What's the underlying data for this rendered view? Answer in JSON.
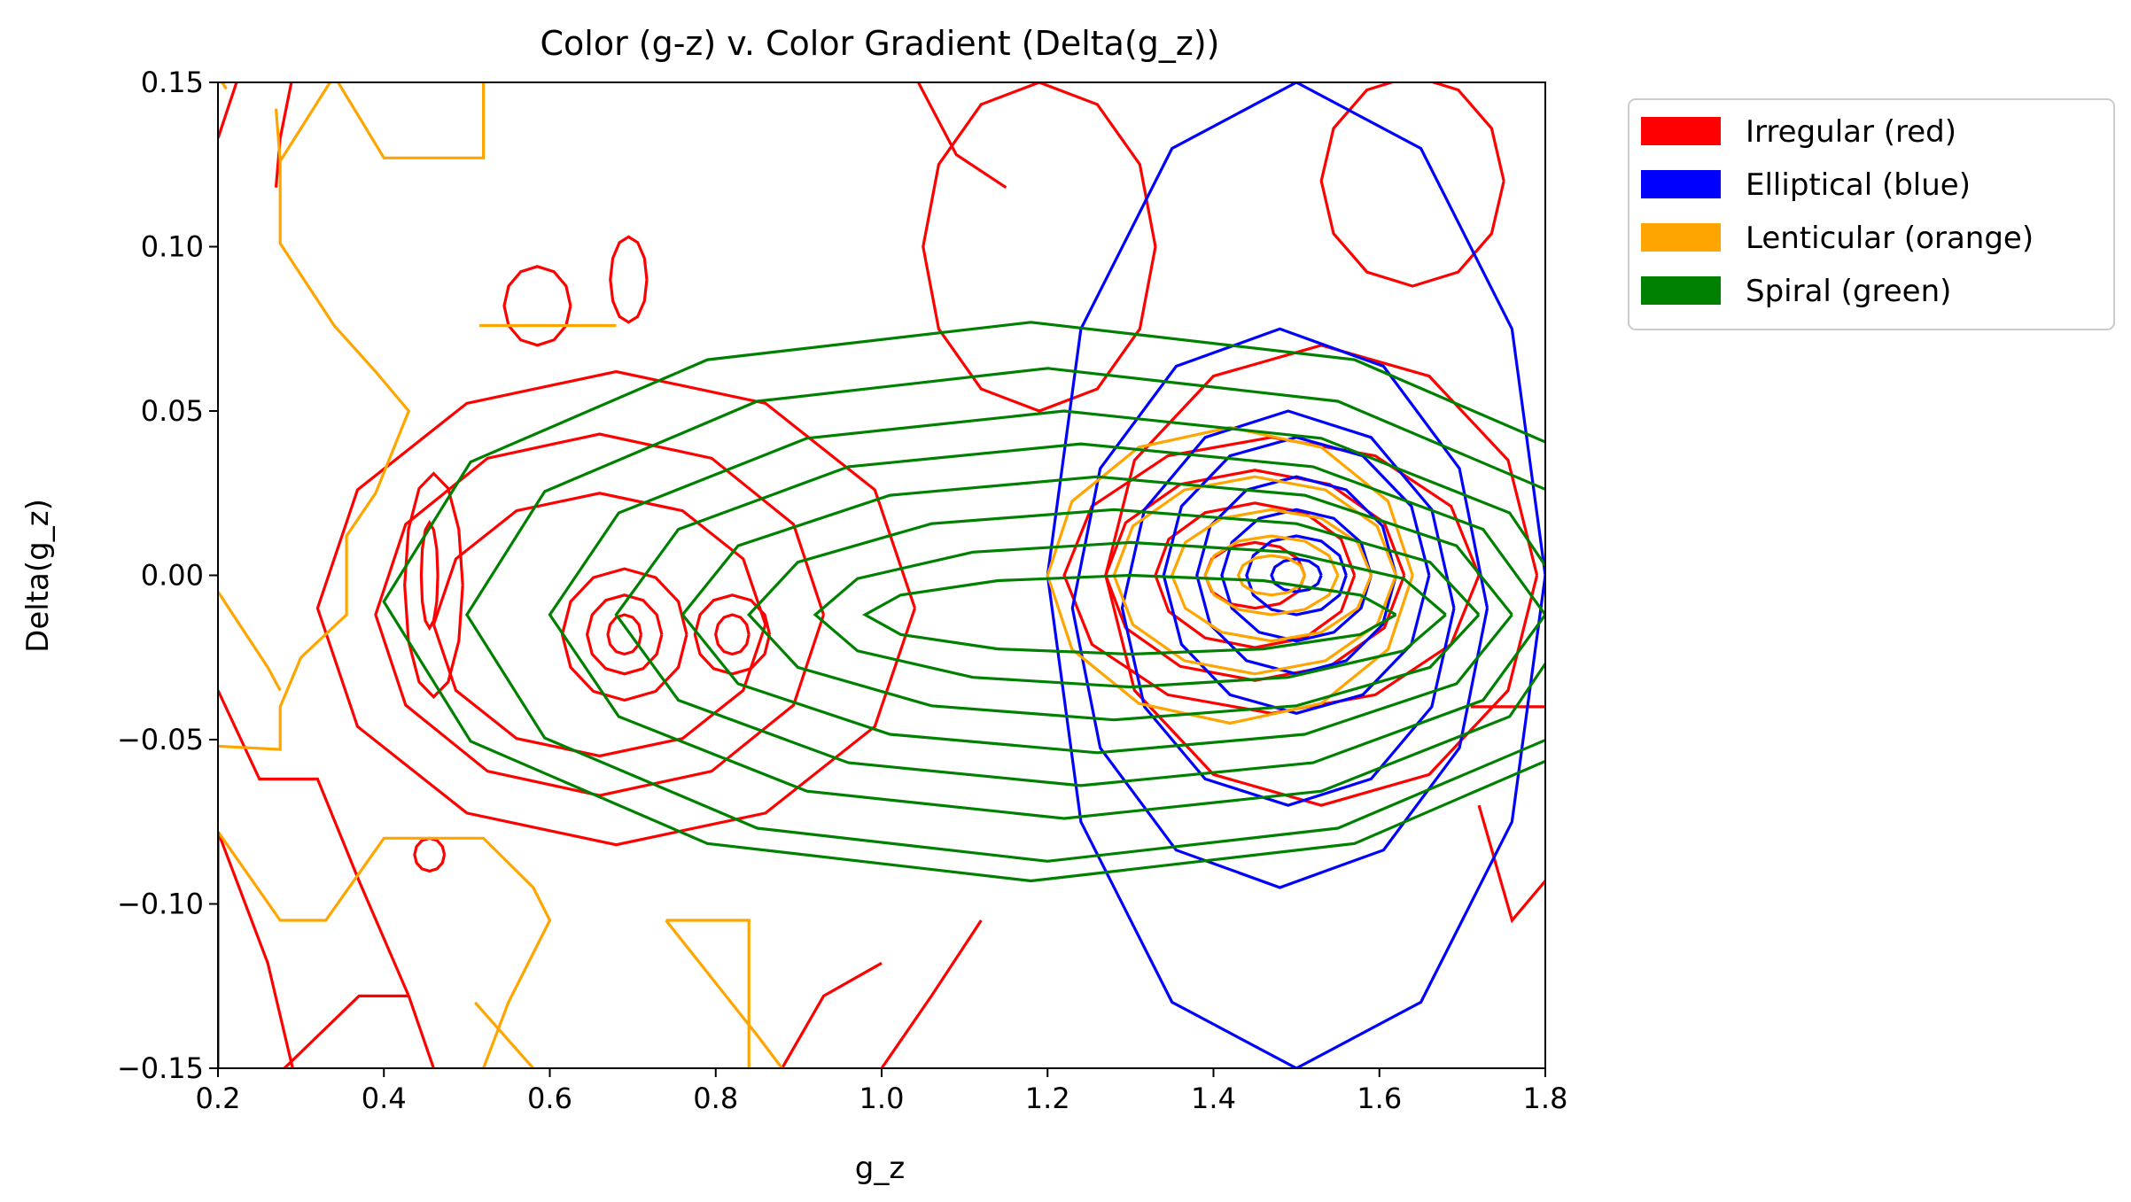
{
  "chart_data": {
    "type": "contour",
    "title": "Color (g-z) v. Color Gradient (Delta(g_z))",
    "xlabel": "g_z",
    "ylabel": "Delta(g_z)",
    "xlim": [
      0.2,
      1.8
    ],
    "ylim": [
      -0.15,
      0.15
    ],
    "xticks": [
      0.2,
      0.4,
      0.6,
      0.8,
      1.0,
      1.2,
      1.4,
      1.6,
      1.8
    ],
    "xtick_labels": [
      "0.2",
      "0.4",
      "0.6",
      "0.8",
      "1.0",
      "1.2",
      "1.4",
      "1.6",
      "1.8"
    ],
    "yticks": [
      -0.15,
      -0.1,
      -0.05,
      0.0,
      0.05,
      0.1,
      0.15
    ],
    "ytick_labels": [
      "−0.15",
      "−0.10",
      "−0.05",
      "0.00",
      "0.05",
      "0.10",
      "0.15"
    ],
    "grid": false,
    "legend_position": "outside-right-top",
    "legend": [
      {
        "label": "Irregular (red)",
        "color": "#ff0000"
      },
      {
        "label": "Elliptical (blue)",
        "color": "#0000ff"
      },
      {
        "label": "Lenticular (orange)",
        "color": "#ffa500"
      },
      {
        "label": "Spiral (green)",
        "color": "#008000"
      }
    ],
    "series": [
      {
        "name": "Irregular (red)",
        "color": "#ff0000",
        "contours": [
          {
            "kind": "ring",
            "center": [
              0.69,
              -0.018
            ],
            "rx": 0.02,
            "ry": 0.006
          },
          {
            "kind": "ring",
            "center": [
              0.69,
              -0.018
            ],
            "rx": 0.045,
            "ry": 0.012
          },
          {
            "kind": "ring",
            "center": [
              0.69,
              -0.018
            ],
            "rx": 0.075,
            "ry": 0.02
          },
          {
            "kind": "ring",
            "center": [
              0.82,
              -0.018
            ],
            "rx": 0.02,
            "ry": 0.006
          },
          {
            "kind": "ring",
            "center": [
              0.82,
              -0.018
            ],
            "rx": 0.045,
            "ry": 0.012
          },
          {
            "kind": "ring",
            "center": [
              0.455,
              0.0
            ],
            "rx": 0.01,
            "ry": 0.016
          },
          {
            "kind": "ring",
            "center": [
              0.46,
              -0.003
            ],
            "rx": 0.035,
            "ry": 0.034
          },
          {
            "kind": "ring",
            "center": [
              0.66,
              -0.015
            ],
            "rx": 0.2,
            "ry": 0.04
          },
          {
            "kind": "ring",
            "center": [
              0.66,
              -0.012
            ],
            "rx": 0.27,
            "ry": 0.055
          },
          {
            "kind": "ring",
            "center": [
              0.68,
              -0.01
            ],
            "rx": 0.36,
            "ry": 0.072
          },
          {
            "kind": "ring",
            "center": [
              1.45,
              0.0
            ],
            "rx": 0.06,
            "ry": 0.01
          },
          {
            "kind": "ring",
            "center": [
              1.45,
              0.0
            ],
            "rx": 0.12,
            "ry": 0.022
          },
          {
            "kind": "ring",
            "center": [
              1.45,
              0.0
            ],
            "rx": 0.18,
            "ry": 0.032
          },
          {
            "kind": "ring",
            "center": [
              1.47,
              0.0
            ],
            "rx": 0.25,
            "ry": 0.042
          },
          {
            "kind": "ring",
            "center": [
              1.53,
              0.0
            ],
            "rx": 0.26,
            "ry": 0.07
          },
          {
            "kind": "ring",
            "center": [
              0.585,
              0.082
            ],
            "rx": 0.04,
            "ry": 0.012
          },
          {
            "kind": "ring",
            "center": [
              0.695,
              0.09
            ],
            "rx": 0.022,
            "ry": 0.013
          },
          {
            "kind": "ring",
            "center": [
              0.455,
              -0.085
            ],
            "rx": 0.018,
            "ry": 0.005
          },
          {
            "kind": "ring",
            "center": [
              1.19,
              0.1
            ],
            "rx": 0.14,
            "ry": 0.05
          },
          {
            "kind": "ring",
            "center": [
              1.64,
              0.12
            ],
            "rx": 0.11,
            "ry": 0.032
          },
          {
            "kind": "path",
            "points": [
              [
                0.2,
                0.133
              ],
              [
                0.225,
                0.152
              ]
            ]
          },
          {
            "kind": "path",
            "points": [
              [
                0.29,
                0.152
              ],
              [
                0.275,
                0.133
              ],
              [
                0.27,
                0.118
              ]
            ]
          },
          {
            "kind": "path",
            "points": [
              [
                1.04,
                0.152
              ],
              [
                1.09,
                0.128
              ],
              [
                1.15,
                0.118
              ]
            ]
          },
          {
            "kind": "path",
            "points": [
              [
                0.2,
                -0.035
              ],
              [
                0.25,
                -0.062
              ],
              [
                0.32,
                -0.062
              ],
              [
                0.37,
                -0.093
              ],
              [
                0.43,
                -0.128
              ],
              [
                0.46,
                -0.15
              ]
            ]
          },
          {
            "kind": "path",
            "points": [
              [
                0.2,
                -0.078
              ],
              [
                0.26,
                -0.118
              ],
              [
                0.29,
                -0.15
              ]
            ]
          },
          {
            "kind": "path",
            "points": [
              [
                0.28,
                -0.15
              ],
              [
                0.37,
                -0.128
              ],
              [
                0.43,
                -0.128
              ]
            ]
          },
          {
            "kind": "path",
            "points": [
              [
                1.0,
                -0.15
              ],
              [
                1.06,
                -0.128
              ],
              [
                1.12,
                -0.105
              ]
            ]
          },
          {
            "kind": "path",
            "points": [
              [
                0.88,
                -0.15
              ],
              [
                0.93,
                -0.128
              ],
              [
                1.0,
                -0.118
              ]
            ]
          },
          {
            "kind": "path",
            "points": [
              [
                1.71,
                -0.04
              ],
              [
                1.8,
                -0.04
              ]
            ]
          },
          {
            "kind": "path",
            "points": [
              [
                1.72,
                -0.07
              ],
              [
                1.76,
                -0.105
              ],
              [
                1.8,
                -0.093
              ]
            ]
          }
        ]
      },
      {
        "name": "Elliptical (blue)",
        "color": "#0000ff",
        "contours": [
          {
            "kind": "ring",
            "center": [
              1.5,
              0.0
            ],
            "rx": 0.03,
            "ry": 0.005
          },
          {
            "kind": "ring",
            "center": [
              1.5,
              0.0
            ],
            "rx": 0.06,
            "ry": 0.012
          },
          {
            "kind": "ring",
            "center": [
              1.5,
              0.0
            ],
            "rx": 0.09,
            "ry": 0.02
          },
          {
            "kind": "ring",
            "center": [
              1.5,
              0.0
            ],
            "rx": 0.12,
            "ry": 0.03
          },
          {
            "kind": "ring",
            "center": [
              1.5,
              0.0
            ],
            "rx": 0.16,
            "ry": 0.042
          },
          {
            "kind": "ring",
            "center": [
              1.49,
              -0.01
            ],
            "rx": 0.2,
            "ry": 0.06
          },
          {
            "kind": "ring",
            "center": [
              1.48,
              -0.01
            ],
            "rx": 0.25,
            "ry": 0.085
          },
          {
            "kind": "ring",
            "center": [
              1.5,
              0.0
            ],
            "rx": 0.3,
            "ry": 0.15
          }
        ]
      },
      {
        "name": "Lenticular (orange)",
        "color": "#ffa500",
        "contours": [
          {
            "kind": "ring",
            "center": [
              1.47,
              0.0
            ],
            "rx": 0.04,
            "ry": 0.006
          },
          {
            "kind": "ring",
            "center": [
              1.47,
              0.0
            ],
            "rx": 0.08,
            "ry": 0.012
          },
          {
            "kind": "ring",
            "center": [
              1.47,
              0.0
            ],
            "rx": 0.12,
            "ry": 0.02
          },
          {
            "kind": "ring",
            "center": [
              1.45,
              0.0
            ],
            "rx": 0.17,
            "ry": 0.03
          },
          {
            "kind": "ring",
            "center": [
              1.42,
              0.0
            ],
            "rx": 0.22,
            "ry": 0.045
          },
          {
            "kind": "path",
            "points": [
              [
                0.2,
                0.152
              ],
              [
                0.21,
                0.148
              ]
            ]
          },
          {
            "kind": "path",
            "points": [
              [
                0.27,
                0.142
              ],
              [
                0.275,
                0.126
              ],
              [
                0.34,
                0.152
              ]
            ]
          },
          {
            "kind": "path",
            "points": [
              [
                0.34,
                0.152
              ],
              [
                0.4,
                0.127
              ],
              [
                0.52,
                0.127
              ],
              [
                0.52,
                0.15
              ]
            ]
          },
          {
            "kind": "path",
            "points": [
              [
                0.275,
                0.126
              ],
              [
                0.275,
                0.101
              ],
              [
                0.34,
                0.076
              ],
              [
                0.39,
                0.062
              ],
              [
                0.43,
                0.05
              ],
              [
                0.39,
                0.025
              ],
              [
                0.355,
                0.012
              ],
              [
                0.355,
                -0.012
              ],
              [
                0.3,
                -0.025
              ],
              [
                0.275,
                -0.04
              ],
              [
                0.275,
                -0.053
              ],
              [
                0.2,
                -0.052
              ]
            ]
          },
          {
            "kind": "path",
            "points": [
              [
                0.2,
                -0.005
              ],
              [
                0.26,
                -0.028
              ],
              [
                0.275,
                -0.035
              ]
            ]
          },
          {
            "kind": "path",
            "points": [
              [
                0.2,
                -0.078
              ],
              [
                0.275,
                -0.105
              ],
              [
                0.33,
                -0.105
              ],
              [
                0.4,
                -0.08
              ],
              [
                0.52,
                -0.08
              ],
              [
                0.58,
                -0.095
              ],
              [
                0.6,
                -0.105
              ],
              [
                0.55,
                -0.13
              ],
              [
                0.52,
                -0.15
              ]
            ]
          },
          {
            "kind": "path",
            "points": [
              [
                0.51,
                -0.13
              ],
              [
                0.58,
                -0.15
              ]
            ]
          },
          {
            "kind": "path",
            "points": [
              [
                0.74,
                -0.105
              ],
              [
                0.84,
                -0.105
              ],
              [
                0.84,
                -0.15
              ]
            ]
          },
          {
            "kind": "path",
            "points": [
              [
                0.74,
                -0.105
              ],
              [
                0.85,
                -0.14
              ],
              [
                0.88,
                -0.15
              ]
            ]
          },
          {
            "kind": "path",
            "points": [
              [
                0.515,
                0.076
              ],
              [
                0.68,
                0.076
              ]
            ]
          }
        ]
      },
      {
        "name": "Spiral (green)",
        "color": "#008000",
        "contours": [
          {
            "kind": "ring",
            "center": [
              1.3,
              -0.012
            ],
            "rx": 0.32,
            "ry": 0.012
          },
          {
            "kind": "ring",
            "center": [
              1.3,
              -0.012
            ],
            "rx": 0.38,
            "ry": 0.022
          },
          {
            "kind": "ring",
            "center": [
              1.28,
              -0.012
            ],
            "rx": 0.44,
            "ry": 0.032
          },
          {
            "kind": "ring",
            "center": [
              1.26,
              -0.012
            ],
            "rx": 0.5,
            "ry": 0.042
          },
          {
            "kind": "ring",
            "center": [
              1.24,
              -0.012
            ],
            "rx": 0.56,
            "ry": 0.052
          },
          {
            "kind": "ring",
            "center": [
              1.22,
              -0.012
            ],
            "rx": 0.62,
            "ry": 0.062
          },
          {
            "kind": "ring",
            "center": [
              1.2,
              -0.012
            ],
            "rx": 0.7,
            "ry": 0.075
          },
          {
            "kind": "ring",
            "center": [
              1.18,
              -0.008
            ],
            "rx": 0.78,
            "ry": 0.085
          },
          {
            "kind": "path",
            "points": [
              [
                0.2,
                -0.078
              ],
              [
                0.2,
                -0.15
              ]
            ]
          }
        ]
      }
    ]
  }
}
